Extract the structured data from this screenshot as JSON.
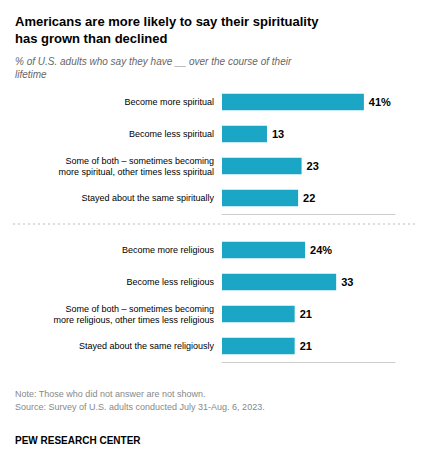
{
  "chart_data": [
    {
      "type": "bar",
      "title": "Americans are more likely to say their spirituality\nhas grown than declined",
      "subtitle": "% of U.S. adults who say they have __ over the course of their\nlifetime",
      "orientation": "horizontal",
      "categories": [
        "Become more spiritual",
        "Become less spiritual",
        "Some of both – sometimes becoming\nmore spiritual, other times less spiritual",
        "Stayed about the same spiritually"
      ],
      "values": [
        41,
        13,
        23,
        22
      ],
      "value_labels": [
        "41%",
        "13",
        "23",
        "22"
      ],
      "color": "#1aA6C4",
      "xlim": [
        0,
        50
      ],
      "data_labels": true,
      "tick_labels": "y",
      "grid": false
    },
    {
      "type": "bar",
      "orientation": "horizontal",
      "categories": [
        "Become more religious",
        "Become less religious",
        "Some of both – sometimes becoming\nmore religious, other times less religious",
        "Stayed about the same religiously"
      ],
      "values": [
        24,
        33,
        21,
        21
      ],
      "value_labels": [
        "24%",
        "33",
        "21",
        "21"
      ],
      "color": "#1aA6C4",
      "xlim": [
        0,
        50
      ],
      "data_labels": true,
      "tick_labels": "y",
      "grid": false,
      "annotations": [
        "Note: Those who did not answer are not shown.\nSource: Survey of U.S. adults conducted July 31-Aug. 6, 2023.",
        "PEW RESEARCH CENTER"
      ]
    }
  ]
}
